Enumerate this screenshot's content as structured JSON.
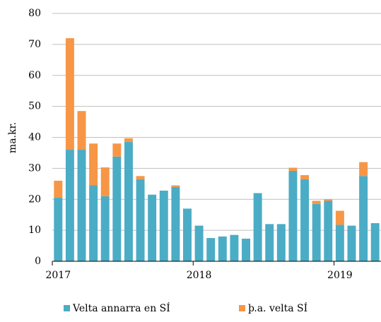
{
  "chart_data": {
    "type": "bar",
    "stacked": true,
    "y_label": "ma.kr.",
    "categories": [
      "2017",
      null,
      null,
      null,
      null,
      null,
      null,
      null,
      null,
      null,
      null,
      null,
      "2018",
      null,
      null,
      null,
      null,
      null,
      null,
      null,
      null,
      null,
      null,
      null,
      "2019",
      null,
      null,
      null
    ],
    "series": [
      {
        "name": "Velta annarra en SÍ",
        "color": "#4bacc6",
        "values": [
          20.5,
          36,
          36,
          24.5,
          21,
          33.8,
          38.5,
          26.5,
          21.5,
          22.8,
          24,
          17,
          11.5,
          7.5,
          8,
          8.5,
          7.3,
          22,
          12,
          12,
          29.2,
          26.5,
          18.5,
          19.5,
          11.8,
          11.5,
          27.5,
          12.3
        ]
      },
      {
        "name": "þ.a. velta SÍ",
        "color": "#f79646",
        "values": [
          5.5,
          36,
          12.5,
          13.5,
          9.3,
          4.2,
          1.2,
          1,
          0,
          0,
          0.5,
          0,
          0,
          0,
          0,
          0,
          0,
          0,
          0,
          0,
          1,
          1.3,
          1,
          0.5,
          4.5,
          0,
          4.5,
          0
        ]
      }
    ],
    "ylim": [
      0,
      80
    ],
    "yticks": [
      0,
      10,
      20,
      30,
      40,
      50,
      60,
      70,
      80
    ],
    "grid": true,
    "legend": "bottom"
  }
}
